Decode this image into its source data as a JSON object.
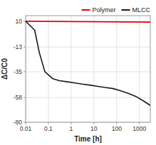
{
  "chart_data": {
    "type": "line",
    "xlabel": "Time [h]",
    "ylabel": "ΔC/C0",
    "log": "x",
    "grid": true,
    "legend": "top-right",
    "xlim": [
      0.01,
      3000
    ],
    "ylim": [
      -80,
      15
    ],
    "xticks": [
      0.01,
      0.1,
      1,
      10,
      100,
      1000
    ],
    "yticks": [
      10,
      -13,
      -35,
      -58,
      -80
    ],
    "series": [
      {
        "name": "Polymer",
        "color": "#e8000d",
        "x": [
          0.01,
          3000
        ],
        "values": [
          10.0,
          9.2
        ]
      },
      {
        "name": "MLCC",
        "color": "#1a1a1a",
        "x": [
          0.01,
          0.025,
          0.04,
          0.07,
          0.15,
          0.3,
          0.7,
          1.5,
          3,
          7,
          15,
          30,
          70,
          150,
          300,
          700,
          1500,
          3000
        ],
        "values": [
          10,
          2,
          -18,
          -35,
          -41,
          -43,
          -44,
          -45,
          -46,
          -47,
          -48,
          -49,
          -50,
          -52,
          -54,
          -57,
          -61,
          -65
        ]
      }
    ]
  }
}
